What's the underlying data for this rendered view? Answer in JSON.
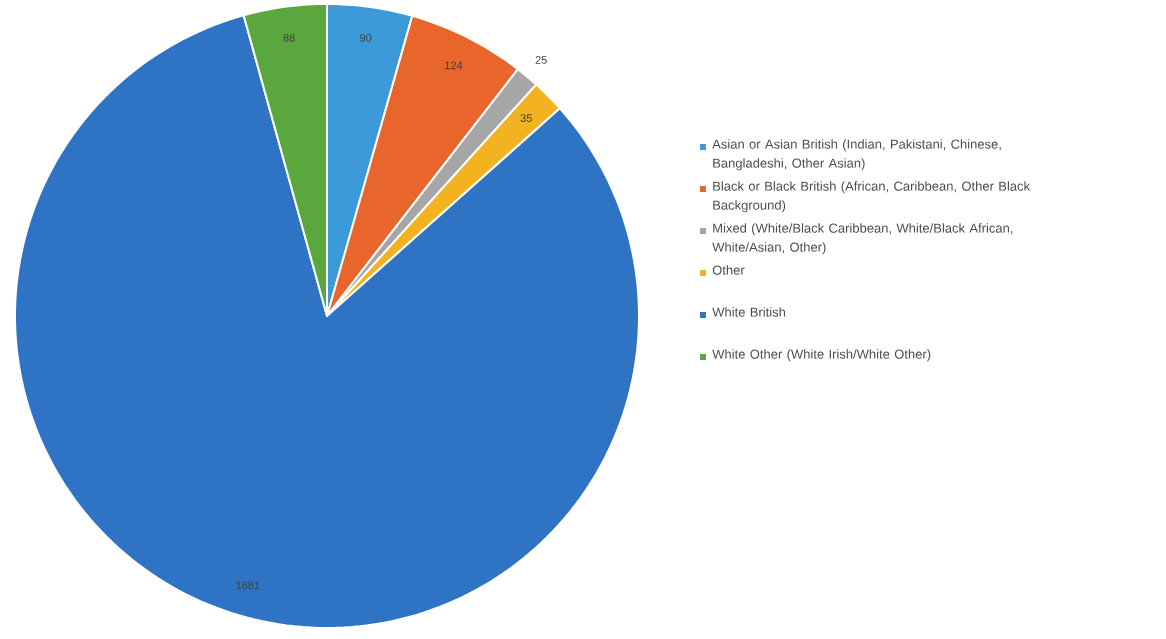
{
  "chart_data": {
    "type": "pie",
    "categories": [
      "Asian or Asian British (Indian, Pakistani, Chinese, Bangladeshi, Other Asian)",
      "Black or Black British (African, Caribbean, Other Black Background)",
      "Mixed (White/Black Caribbean, White/Black African, White/Asian, Other)",
      "Other",
      "White British",
      "White Other (White Irish/White Other)"
    ],
    "values": [
      90,
      124,
      25,
      35,
      1681,
      88
    ],
    "colors": [
      "#3c9ad9",
      "#e8652c",
      "#a6a6a6",
      "#f3b321",
      "#2f74c4",
      "#5aa73e"
    ],
    "data_labels": true,
    "legend": "right"
  }
}
